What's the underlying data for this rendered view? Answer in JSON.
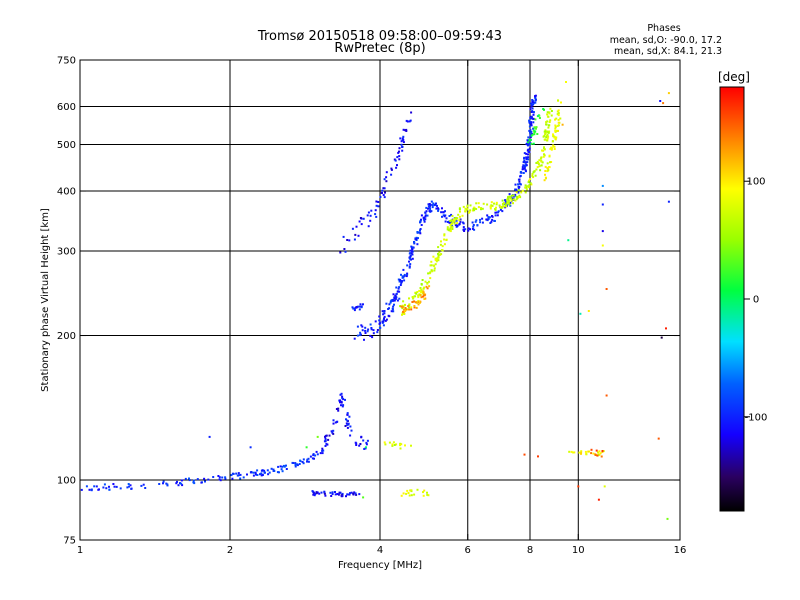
{
  "header": {
    "title": "Tromsø 20150518 09:58:00–09:59:43",
    "subtitle": "RwPretec (8p)"
  },
  "phases": {
    "label": "Phases",
    "line_o": "mean, sd,O: -90.0, 17.2",
    "line_x": "mean, sd,X:  84.1, 21.3"
  },
  "colorbar": {
    "unit": "[deg]",
    "range": [
      -180,
      180
    ],
    "ticks": [
      100,
      0,
      -100
    ],
    "tick_labels": [
      "100",
      "0",
      "-100"
    ]
  },
  "chart_data": {
    "type": "scatter",
    "xlabel": "Frequency [MHz]",
    "ylabel": "Stationary phase Virtual Height [km]",
    "xscale": "log",
    "yscale": "log",
    "xlim": [
      1,
      16
    ],
    "ylim": [
      75,
      750
    ],
    "xticks": [
      1,
      2,
      4,
      6,
      8,
      10,
      16
    ],
    "yticks": [
      75,
      100,
      200,
      300,
      400,
      500,
      600,
      750
    ],
    "xgrid": [
      2,
      4,
      6,
      8,
      10
    ],
    "ygrid": [
      100,
      200,
      300,
      400,
      500,
      600
    ],
    "grid": true,
    "traces": [
      {
        "pts": [
          [
            1.0,
            96
          ],
          [
            1.15,
            97
          ],
          [
            1.3,
            96.5
          ],
          [
            1.45,
            98
          ],
          [
            1.6,
            99
          ],
          [
            1.75,
            100
          ],
          [
            1.9,
            100.5
          ],
          [
            2.05,
            102
          ],
          [
            2.2,
            103
          ],
          [
            2.35,
            104
          ],
          [
            2.5,
            105
          ],
          [
            2.65,
            107
          ],
          [
            2.8,
            109
          ],
          [
            2.95,
            112
          ],
          [
            3.1,
            115
          ]
        ],
        "phase": -95,
        "count": 140,
        "jitter": 1.5
      },
      {
        "pts": [
          [
            2.9,
            94
          ],
          [
            3.2,
            93.5
          ],
          [
            3.5,
            93
          ],
          [
            3.65,
            94
          ]
        ],
        "phase": -110,
        "count": 45,
        "jitter": 1.0
      },
      {
        "pts": [
          [
            3.05,
            117
          ],
          [
            3.2,
            125
          ],
          [
            3.3,
            140
          ],
          [
            3.35,
            150
          ],
          [
            3.42,
            135
          ],
          [
            3.5,
            125
          ],
          [
            3.65,
            120
          ],
          [
            3.85,
            118
          ]
        ],
        "phase": -110,
        "count": 70,
        "jitter": 4
      },
      {
        "pts": [
          [
            4.1,
            120
          ],
          [
            4.3,
            118
          ],
          [
            4.6,
            117
          ]
        ],
        "phase": 75,
        "count": 14,
        "jitter": 1.5
      },
      {
        "pts": [
          [
            4.4,
            94
          ],
          [
            4.8,
            94.5
          ],
          [
            5.0,
            93
          ]
        ],
        "phase": 80,
        "count": 18,
        "jitter": 1.5
      },
      {
        "pts": [
          [
            3.55,
            205
          ],
          [
            3.7,
            200
          ],
          [
            3.9,
            205
          ],
          [
            4.1,
            220
          ],
          [
            4.3,
            240
          ],
          [
            4.5,
            270
          ],
          [
            4.7,
            310
          ],
          [
            4.9,
            355
          ],
          [
            5.1,
            375
          ],
          [
            5.35,
            360
          ],
          [
            5.6,
            345
          ],
          [
            5.9,
            338
          ],
          [
            6.3,
            340
          ],
          [
            6.7,
            350
          ],
          [
            7.1,
            370
          ],
          [
            7.5,
            400
          ],
          [
            7.8,
            450
          ],
          [
            8.0,
            520
          ],
          [
            8.1,
            600
          ],
          [
            8.2,
            640
          ]
        ],
        "phase": -100,
        "count": 420,
        "jitter": 8
      },
      {
        "pts": [
          [
            3.55,
            228
          ],
          [
            3.7,
            230
          ]
        ],
        "phase": -100,
        "count": 14,
        "jitter": 3
      },
      {
        "pts": [
          [
            3.3,
            300
          ],
          [
            3.5,
            320
          ],
          [
            3.7,
            345
          ],
          [
            3.9,
            360
          ],
          [
            4.05,
            390
          ],
          [
            4.1,
            420
          ],
          [
            4.2,
            440
          ],
          [
            4.35,
            470
          ],
          [
            4.45,
            510
          ],
          [
            4.6,
            580
          ]
        ],
        "phase": -110,
        "count": 75,
        "jitter": 12
      },
      {
        "pts": [
          [
            4.4,
            228
          ],
          [
            4.6,
            233
          ],
          [
            4.8,
            245
          ],
          [
            5.0,
            265
          ],
          [
            5.2,
            290
          ],
          [
            5.4,
            320
          ],
          [
            5.6,
            345
          ],
          [
            5.8,
            360
          ],
          [
            6.2,
            372
          ],
          [
            6.6,
            370
          ],
          [
            7.0,
            375
          ],
          [
            7.4,
            385
          ],
          [
            7.8,
            400
          ],
          [
            8.2,
            430
          ],
          [
            8.5,
            480
          ],
          [
            8.7,
            550
          ],
          [
            8.8,
            600
          ]
        ],
        "phase": 70,
        "count": 300,
        "jitter": 8
      },
      {
        "pts": [
          [
            4.4,
            225
          ],
          [
            4.8,
            235
          ],
          [
            5.0,
            250
          ]
        ],
        "phase": 125,
        "count": 40,
        "jitter": 5
      },
      {
        "pts": [
          [
            8.6,
            420
          ],
          [
            8.9,
            500
          ],
          [
            9.1,
            560
          ],
          [
            9.2,
            620
          ]
        ],
        "phase": 85,
        "count": 60,
        "jitter": 15
      },
      {
        "pts": [
          [
            8.0,
            500
          ],
          [
            8.3,
            560
          ],
          [
            8.5,
            600
          ]
        ],
        "phase": 20,
        "count": 25,
        "jitter": 20
      },
      {
        "pts": [
          [
            9.6,
            114
          ],
          [
            10.2,
            114
          ],
          [
            10.6,
            113.5
          ],
          [
            11.2,
            114
          ]
        ],
        "phase": 90,
        "count": 22,
        "jitter": 1.2
      },
      {
        "pts": [
          [
            10.6,
            115
          ],
          [
            11.0,
            114
          ],
          [
            11.4,
            113
          ]
        ],
        "phase": 150,
        "count": 8,
        "jitter": 2
      }
    ],
    "scatter_points": [
      [
        1.82,
        123,
        -100
      ],
      [
        2.2,
        117,
        -95
      ],
      [
        3.0,
        123,
        40
      ],
      [
        2.85,
        117,
        20
      ],
      [
        3.7,
        92,
        30
      ],
      [
        3.75,
        117,
        -5
      ],
      [
        7.8,
        113,
        155
      ],
      [
        8.3,
        112,
        160
      ],
      [
        9.55,
        316,
        -10
      ],
      [
        10.1,
        222,
        -20
      ],
      [
        10.5,
        225,
        100
      ],
      [
        11.2,
        410,
        -60
      ],
      [
        11.2,
        375,
        -100
      ],
      [
        11.2,
        330,
        -120
      ],
      [
        11.2,
        308,
        90
      ],
      [
        11.4,
        250,
        150
      ],
      [
        11.4,
        150,
        150
      ],
      [
        11.3,
        97,
        80
      ],
      [
        11.0,
        91,
        170
      ],
      [
        10.0,
        97,
        160
      ],
      [
        14.6,
        616,
        -110
      ],
      [
        14.8,
        610,
        140
      ],
      [
        15.2,
        640,
        110
      ],
      [
        15.2,
        380,
        -100
      ],
      [
        14.7,
        198,
        -160
      ],
      [
        15.0,
        207,
        170
      ],
      [
        14.5,
        122,
        150
      ],
      [
        15.1,
        83,
        40
      ],
      [
        9.45,
        675,
        90
      ],
      [
        9.3,
        550,
        120
      ]
    ]
  }
}
